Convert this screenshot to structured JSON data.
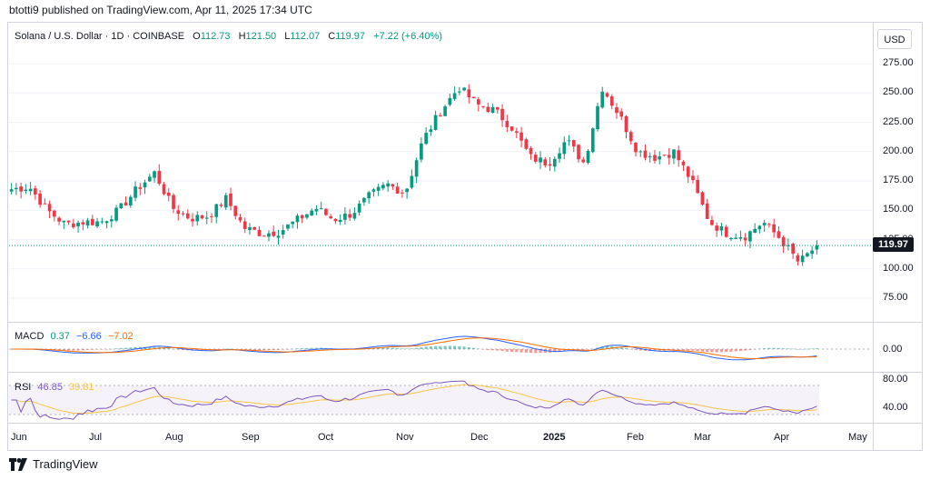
{
  "publisher_line": "btotti9 published on TradingView.com, Apr 11, 2025 17:34 UTC",
  "brand": "TradingView",
  "legend": {
    "symbol": "Solana / U.S. Dollar · 1D · COINBASE",
    "o_label": "O",
    "o": "112.73",
    "h_label": "H",
    "h": "121.50",
    "l_label": "L",
    "l": "112.07",
    "c_label": "C",
    "c": "119.97",
    "change": "+7.22 (+6.40%)"
  },
  "currency": "USD",
  "last_price": "119.97",
  "macd": {
    "name": "MACD",
    "v1": "0.37",
    "v2": "−6.66",
    "v3": "−7.02",
    "axis_label": "0.00",
    "color_v1": "#089981",
    "color_v2": "#2962ff",
    "color_v3": "#ff6d00"
  },
  "rsi": {
    "name": "RSI",
    "v1": "46.85",
    "v2": "39.81",
    "axis_upper": "80.00",
    "axis_lower": "40.00",
    "color_v1": "#7e57c2",
    "color_v2": "#f7c548"
  },
  "colors": {
    "up": "#089981",
    "down": "#f23645"
  },
  "chart_data": {
    "type": "candlestick",
    "title": "Solana / U.S. Dollar · 1D · COINBASE",
    "ylabel": "USD",
    "ylim": [
      55,
      300
    ],
    "yticks": [
      "275.00",
      "250.00",
      "225.00",
      "200.00",
      "175.00",
      "150.00",
      "125.00",
      "100.00",
      "75.00"
    ],
    "ytick_values": [
      275,
      250,
      225,
      200,
      175,
      150,
      125,
      100,
      75
    ],
    "xticks": [
      "Jun",
      "Jul",
      "Aug",
      "Sep",
      "Oct",
      "Nov",
      "Dec",
      "2025",
      "Feb",
      "Mar",
      "Apr",
      "May"
    ],
    "close_path_weekly": [
      {
        "t": "Jun 01",
        "v": 168
      },
      {
        "t": "Jun 08",
        "v": 170
      },
      {
        "t": "Jun 15",
        "v": 150
      },
      {
        "t": "Jun 22",
        "v": 138
      },
      {
        "t": "Jun 29",
        "v": 140
      },
      {
        "t": "Jul 06",
        "v": 140
      },
      {
        "t": "Jul 13",
        "v": 150
      },
      {
        "t": "Jul 20",
        "v": 168
      },
      {
        "t": "Jul 27",
        "v": 182
      },
      {
        "t": "Aug 03",
        "v": 152
      },
      {
        "t": "Aug 10",
        "v": 143
      },
      {
        "t": "Aug 17",
        "v": 145
      },
      {
        "t": "Aug 24",
        "v": 160
      },
      {
        "t": "Aug 31",
        "v": 135
      },
      {
        "t": "Sep 07",
        "v": 130
      },
      {
        "t": "Sep 14",
        "v": 132
      },
      {
        "t": "Sep 21",
        "v": 142
      },
      {
        "t": "Sep 28",
        "v": 152
      },
      {
        "t": "Oct 05",
        "v": 142
      },
      {
        "t": "Oct 12",
        "v": 147
      },
      {
        "t": "Oct 19",
        "v": 162
      },
      {
        "t": "Oct 26",
        "v": 172
      },
      {
        "t": "Nov 02",
        "v": 165
      },
      {
        "t": "Nov 09",
        "v": 210
      },
      {
        "t": "Nov 16",
        "v": 235
      },
      {
        "t": "Nov 23",
        "v": 255
      },
      {
        "t": "Nov 30",
        "v": 240
      },
      {
        "t": "Dec 07",
        "v": 235
      },
      {
        "t": "Dec 14",
        "v": 220
      },
      {
        "t": "Dec 21",
        "v": 195
      },
      {
        "t": "Dec 28",
        "v": 190
      },
      {
        "t": "Jan 04",
        "v": 210
      },
      {
        "t": "Jan 11",
        "v": 190
      },
      {
        "t": "Jan 18",
        "v": 255
      },
      {
        "t": "Jan 25",
        "v": 230
      },
      {
        "t": "Feb 01",
        "v": 200
      },
      {
        "t": "Feb 08",
        "v": 195
      },
      {
        "t": "Feb 15",
        "v": 200
      },
      {
        "t": "Feb 22",
        "v": 175
      },
      {
        "t": "Mar 01",
        "v": 140
      },
      {
        "t": "Mar 08",
        "v": 130
      },
      {
        "t": "Mar 15",
        "v": 128
      },
      {
        "t": "Mar 22",
        "v": 140
      },
      {
        "t": "Mar 29",
        "v": 125
      },
      {
        "t": "Apr 05",
        "v": 105
      },
      {
        "t": "Apr 11",
        "v": 119.97
      }
    ]
  }
}
